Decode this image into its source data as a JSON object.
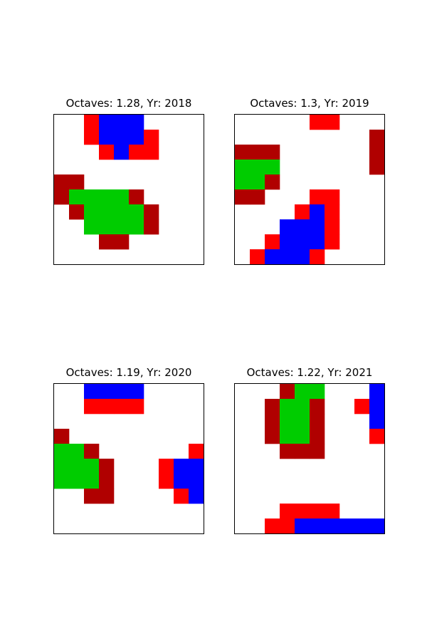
{
  "palette": {
    "0": "#ffffff",
    "1": "#b00000",
    "2": "#ff0000",
    "3": "#00cc00",
    "4": "#0000ff"
  },
  "chart_data": [
    {
      "type": "heatmap",
      "title": "Octaves: 1.28, Yr: 2018",
      "grid": [
        [
          0,
          0,
          2,
          4,
          4,
          4,
          0,
          0,
          0,
          0
        ],
        [
          0,
          0,
          2,
          4,
          4,
          4,
          2,
          0,
          0,
          0
        ],
        [
          0,
          0,
          0,
          2,
          4,
          2,
          2,
          0,
          0,
          0
        ],
        [
          0,
          0,
          0,
          0,
          0,
          0,
          0,
          0,
          0,
          0
        ],
        [
          1,
          1,
          0,
          0,
          0,
          0,
          0,
          0,
          0,
          0
        ],
        [
          1,
          3,
          3,
          3,
          3,
          1,
          0,
          0,
          0,
          0
        ],
        [
          0,
          1,
          3,
          3,
          3,
          3,
          1,
          0,
          0,
          0
        ],
        [
          0,
          0,
          3,
          3,
          3,
          3,
          1,
          0,
          0,
          0
        ],
        [
          0,
          0,
          0,
          1,
          1,
          0,
          0,
          0,
          0,
          0
        ],
        [
          0,
          0,
          0,
          0,
          0,
          0,
          0,
          0,
          0,
          0
        ]
      ]
    },
    {
      "type": "heatmap",
      "title": "Octaves: 1.3, Yr: 2019",
      "grid": [
        [
          0,
          0,
          0,
          0,
          0,
          2,
          2,
          0,
          0,
          0
        ],
        [
          0,
          0,
          0,
          0,
          0,
          0,
          0,
          0,
          0,
          1
        ],
        [
          1,
          1,
          1,
          0,
          0,
          0,
          0,
          0,
          0,
          1
        ],
        [
          3,
          3,
          3,
          0,
          0,
          0,
          0,
          0,
          0,
          1
        ],
        [
          3,
          3,
          1,
          0,
          0,
          0,
          0,
          0,
          0,
          0
        ],
        [
          1,
          1,
          0,
          0,
          0,
          2,
          2,
          0,
          0,
          0
        ],
        [
          0,
          0,
          0,
          0,
          2,
          4,
          2,
          0,
          0,
          0
        ],
        [
          0,
          0,
          0,
          4,
          4,
          4,
          2,
          0,
          0,
          0
        ],
        [
          0,
          0,
          2,
          4,
          4,
          4,
          2,
          0,
          0,
          0
        ],
        [
          0,
          2,
          4,
          4,
          4,
          2,
          0,
          0,
          0,
          0
        ]
      ]
    },
    {
      "type": "heatmap",
      "title": "Octaves: 1.19, Yr: 2020",
      "grid": [
        [
          0,
          0,
          4,
          4,
          4,
          4,
          0,
          0,
          0,
          0
        ],
        [
          0,
          0,
          2,
          2,
          2,
          2,
          0,
          0,
          0,
          0
        ],
        [
          0,
          0,
          0,
          0,
          0,
          0,
          0,
          0,
          0,
          0
        ],
        [
          1,
          0,
          0,
          0,
          0,
          0,
          0,
          0,
          0,
          0
        ],
        [
          3,
          3,
          1,
          0,
          0,
          0,
          0,
          0,
          0,
          2
        ],
        [
          3,
          3,
          3,
          1,
          0,
          0,
          0,
          2,
          4,
          4
        ],
        [
          3,
          3,
          3,
          1,
          0,
          0,
          0,
          2,
          4,
          4
        ],
        [
          0,
          0,
          1,
          1,
          0,
          0,
          0,
          0,
          2,
          4
        ],
        [
          0,
          0,
          0,
          0,
          0,
          0,
          0,
          0,
          0,
          0
        ],
        [
          0,
          0,
          0,
          0,
          0,
          0,
          0,
          0,
          0,
          0
        ]
      ]
    },
    {
      "type": "heatmap",
      "title": "Octaves: 1.22, Yr: 2021",
      "grid": [
        [
          0,
          0,
          0,
          1,
          3,
          3,
          0,
          0,
          0,
          4
        ],
        [
          0,
          0,
          1,
          3,
          3,
          1,
          0,
          0,
          2,
          4
        ],
        [
          0,
          0,
          1,
          3,
          3,
          1,
          0,
          0,
          0,
          4
        ],
        [
          0,
          0,
          1,
          3,
          3,
          1,
          0,
          0,
          0,
          2
        ],
        [
          0,
          0,
          0,
          1,
          1,
          1,
          0,
          0,
          0,
          0
        ],
        [
          0,
          0,
          0,
          0,
          0,
          0,
          0,
          0,
          0,
          0
        ],
        [
          0,
          0,
          0,
          0,
          0,
          0,
          0,
          0,
          0,
          0
        ],
        [
          0,
          0,
          0,
          0,
          0,
          0,
          0,
          0,
          0,
          0
        ],
        [
          0,
          0,
          0,
          2,
          2,
          2,
          2,
          0,
          0,
          0
        ],
        [
          0,
          0,
          2,
          2,
          4,
          4,
          4,
          4,
          4,
          4
        ]
      ]
    }
  ]
}
